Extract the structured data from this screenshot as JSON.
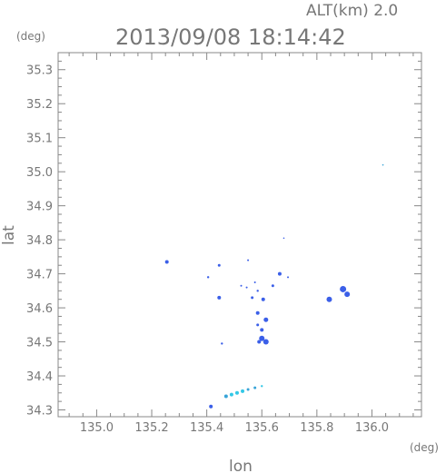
{
  "header": {
    "alt_label": "ALT(km) 2.0",
    "timestamp": "2013/09/08 18:14:42"
  },
  "colors": {
    "axis": "#888888",
    "text": "#777777",
    "echo_blue": "#3b5fe8",
    "echo_cyan": "#33c8e6",
    "echo_teal": "#38a4d8"
  },
  "chart_data": {
    "type": "scatter",
    "title": "2013/09/08 18:14:42",
    "xlabel": "lon",
    "ylabel": "lat",
    "x_unit": "(deg)",
    "y_unit": "(deg)",
    "xlim": [
      134.86,
      136.18
    ],
    "ylim": [
      34.28,
      35.35
    ],
    "xticks": [
      "135.0",
      "135.2",
      "135.4",
      "135.6",
      "135.8",
      "136.0"
    ],
    "xtick_values": [
      135.0,
      135.2,
      135.4,
      135.6,
      135.8,
      136.0
    ],
    "yticks": [
      "34.3",
      "34.4",
      "34.5",
      "34.6",
      "34.7",
      "34.8",
      "34.9",
      "35.0",
      "35.1",
      "35.2",
      "35.3"
    ],
    "ytick_values": [
      34.3,
      34.4,
      34.5,
      34.6,
      34.7,
      34.8,
      34.9,
      35.0,
      35.1,
      35.2,
      35.3
    ],
    "grid": false,
    "series": [
      {
        "points": [
          {
            "lon": 135.255,
            "lat": 34.735,
            "size": 2,
            "color": "blue"
          },
          {
            "lon": 135.445,
            "lat": 34.725,
            "size": 1.5,
            "color": "blue"
          },
          {
            "lon": 135.405,
            "lat": 34.69,
            "size": 1.2,
            "color": "blue"
          },
          {
            "lon": 135.445,
            "lat": 34.63,
            "size": 2,
            "color": "blue"
          },
          {
            "lon": 135.55,
            "lat": 34.74,
            "size": 1,
            "color": "blue"
          },
          {
            "lon": 135.525,
            "lat": 34.665,
            "size": 1,
            "color": "blue"
          },
          {
            "lon": 135.545,
            "lat": 34.66,
            "size": 1,
            "color": "blue"
          },
          {
            "lon": 135.575,
            "lat": 34.675,
            "size": 1,
            "color": "blue"
          },
          {
            "lon": 135.585,
            "lat": 34.65,
            "size": 1.2,
            "color": "blue"
          },
          {
            "lon": 135.605,
            "lat": 34.625,
            "size": 2,
            "color": "blue"
          },
          {
            "lon": 135.565,
            "lat": 34.63,
            "size": 1.5,
            "color": "blue"
          },
          {
            "lon": 135.665,
            "lat": 34.7,
            "size": 2,
            "color": "blue"
          },
          {
            "lon": 135.695,
            "lat": 34.69,
            "size": 1,
            "color": "blue"
          },
          {
            "lon": 135.64,
            "lat": 34.665,
            "size": 1.5,
            "color": "blue"
          },
          {
            "lon": 135.68,
            "lat": 34.805,
            "size": 0.8,
            "color": "blue"
          },
          {
            "lon": 135.585,
            "lat": 34.585,
            "size": 2,
            "color": "blue"
          },
          {
            "lon": 135.615,
            "lat": 34.565,
            "size": 2.5,
            "color": "blue"
          },
          {
            "lon": 135.585,
            "lat": 34.55,
            "size": 1.5,
            "color": "blue"
          },
          {
            "lon": 135.6,
            "lat": 34.535,
            "size": 2,
            "color": "blue"
          },
          {
            "lon": 135.6,
            "lat": 34.51,
            "size": 3,
            "color": "blue"
          },
          {
            "lon": 135.615,
            "lat": 34.5,
            "size": 3,
            "color": "blue"
          },
          {
            "lon": 135.59,
            "lat": 34.5,
            "size": 2,
            "color": "blue"
          },
          {
            "lon": 135.455,
            "lat": 34.495,
            "size": 1.2,
            "color": "blue"
          },
          {
            "lon": 135.845,
            "lat": 34.625,
            "size": 3,
            "color": "blue"
          },
          {
            "lon": 135.895,
            "lat": 34.655,
            "size": 3.5,
            "color": "blue"
          },
          {
            "lon": 135.91,
            "lat": 34.64,
            "size": 3,
            "color": "blue"
          },
          {
            "lon": 136.04,
            "lat": 35.02,
            "size": 0.8,
            "color": "teal"
          },
          {
            "lon": 135.415,
            "lat": 34.31,
            "size": 2,
            "color": "blue"
          },
          {
            "lon": 135.47,
            "lat": 34.34,
            "size": 2,
            "color": "teal"
          },
          {
            "lon": 135.49,
            "lat": 34.345,
            "size": 2,
            "color": "cyan"
          },
          {
            "lon": 135.51,
            "lat": 34.35,
            "size": 2,
            "color": "cyan"
          },
          {
            "lon": 135.53,
            "lat": 34.355,
            "size": 2,
            "color": "cyan"
          },
          {
            "lon": 135.55,
            "lat": 34.36,
            "size": 1.5,
            "color": "teal"
          },
          {
            "lon": 135.575,
            "lat": 34.365,
            "size": 1.5,
            "color": "teal"
          },
          {
            "lon": 135.6,
            "lat": 34.37,
            "size": 1.2,
            "color": "cyan"
          }
        ]
      }
    ]
  }
}
